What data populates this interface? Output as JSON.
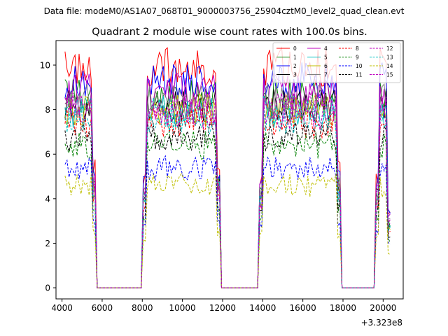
{
  "figure": {
    "suptitle": "Data file: modeM0/AS1A07_068T01_9000003756_25904cztM0_level2_quad_clean.evt"
  },
  "chart_data": {
    "type": "line",
    "title": "Quadrant 2 module wise count rates with 100.0s bins.",
    "xlabel": "",
    "ylabel": "",
    "x_offset_label": "+3.323e8",
    "xlim": [
      3700,
      21000
    ],
    "ylim": [
      -0.5,
      11.1
    ],
    "xticks": [
      4000,
      6000,
      8000,
      10000,
      12000,
      14000,
      16000,
      18000,
      20000
    ],
    "xtick_labels": [
      "4000",
      "6000",
      "8000",
      "10000",
      "12000",
      "14000",
      "16000",
      "18000",
      "20000"
    ],
    "yticks": [
      0,
      2,
      4,
      6,
      8,
      10
    ],
    "ytick_labels": [
      "0",
      "2",
      "4",
      "6",
      "8",
      "10"
    ],
    "grid": false,
    "legend_position": "top-right",
    "legend_columns": 4,
    "x_range": [
      4150,
      20350
    ],
    "bin_width": 100,
    "gaps": [
      [
        5650,
        8050
      ],
      [
        11850,
        13850
      ],
      [
        17850,
        19650
      ]
    ],
    "series": [
      {
        "name": "0",
        "color": "#ff0000",
        "dash": "solid",
        "level": 9.9
      },
      {
        "name": "1",
        "color": "#008000",
        "dash": "solid",
        "level": 8.6
      },
      {
        "name": "2",
        "color": "#0000ff",
        "dash": "solid",
        "level": 9.3
      },
      {
        "name": "3",
        "color": "#000000",
        "dash": "solid",
        "level": 8.2
      },
      {
        "name": "4",
        "color": "#bf00bf",
        "dash": "solid",
        "level": 8.8
      },
      {
        "name": "5",
        "color": "#00bfbf",
        "dash": "solid",
        "level": 7.9
      },
      {
        "name": "6",
        "color": "#bfbf00",
        "dash": "solid",
        "level": 8.0
      },
      {
        "name": "7",
        "color": "#7f7f7f",
        "dash": "solid",
        "level": 8.4
      },
      {
        "name": "8",
        "color": "#ff0000",
        "dash": "dashed",
        "level": 7.4
      },
      {
        "name": "9",
        "color": "#008000",
        "dash": "dashed",
        "level": 6.4
      },
      {
        "name": "10",
        "color": "#0000ff",
        "dash": "dashed",
        "level": 5.4
      },
      {
        "name": "11",
        "color": "#000000",
        "dash": "dashed",
        "level": 6.8
      },
      {
        "name": "12",
        "color": "#bf00bf",
        "dash": "dashed",
        "level": 8.1
      },
      {
        "name": "13",
        "color": "#00bfbf",
        "dash": "dashed",
        "level": 7.6
      },
      {
        "name": "14",
        "color": "#bfbf00",
        "dash": "dashed",
        "level": 4.6
      },
      {
        "name": "15",
        "color": "#bf00bf",
        "dash": "dashed",
        "level": 7.8
      }
    ]
  }
}
